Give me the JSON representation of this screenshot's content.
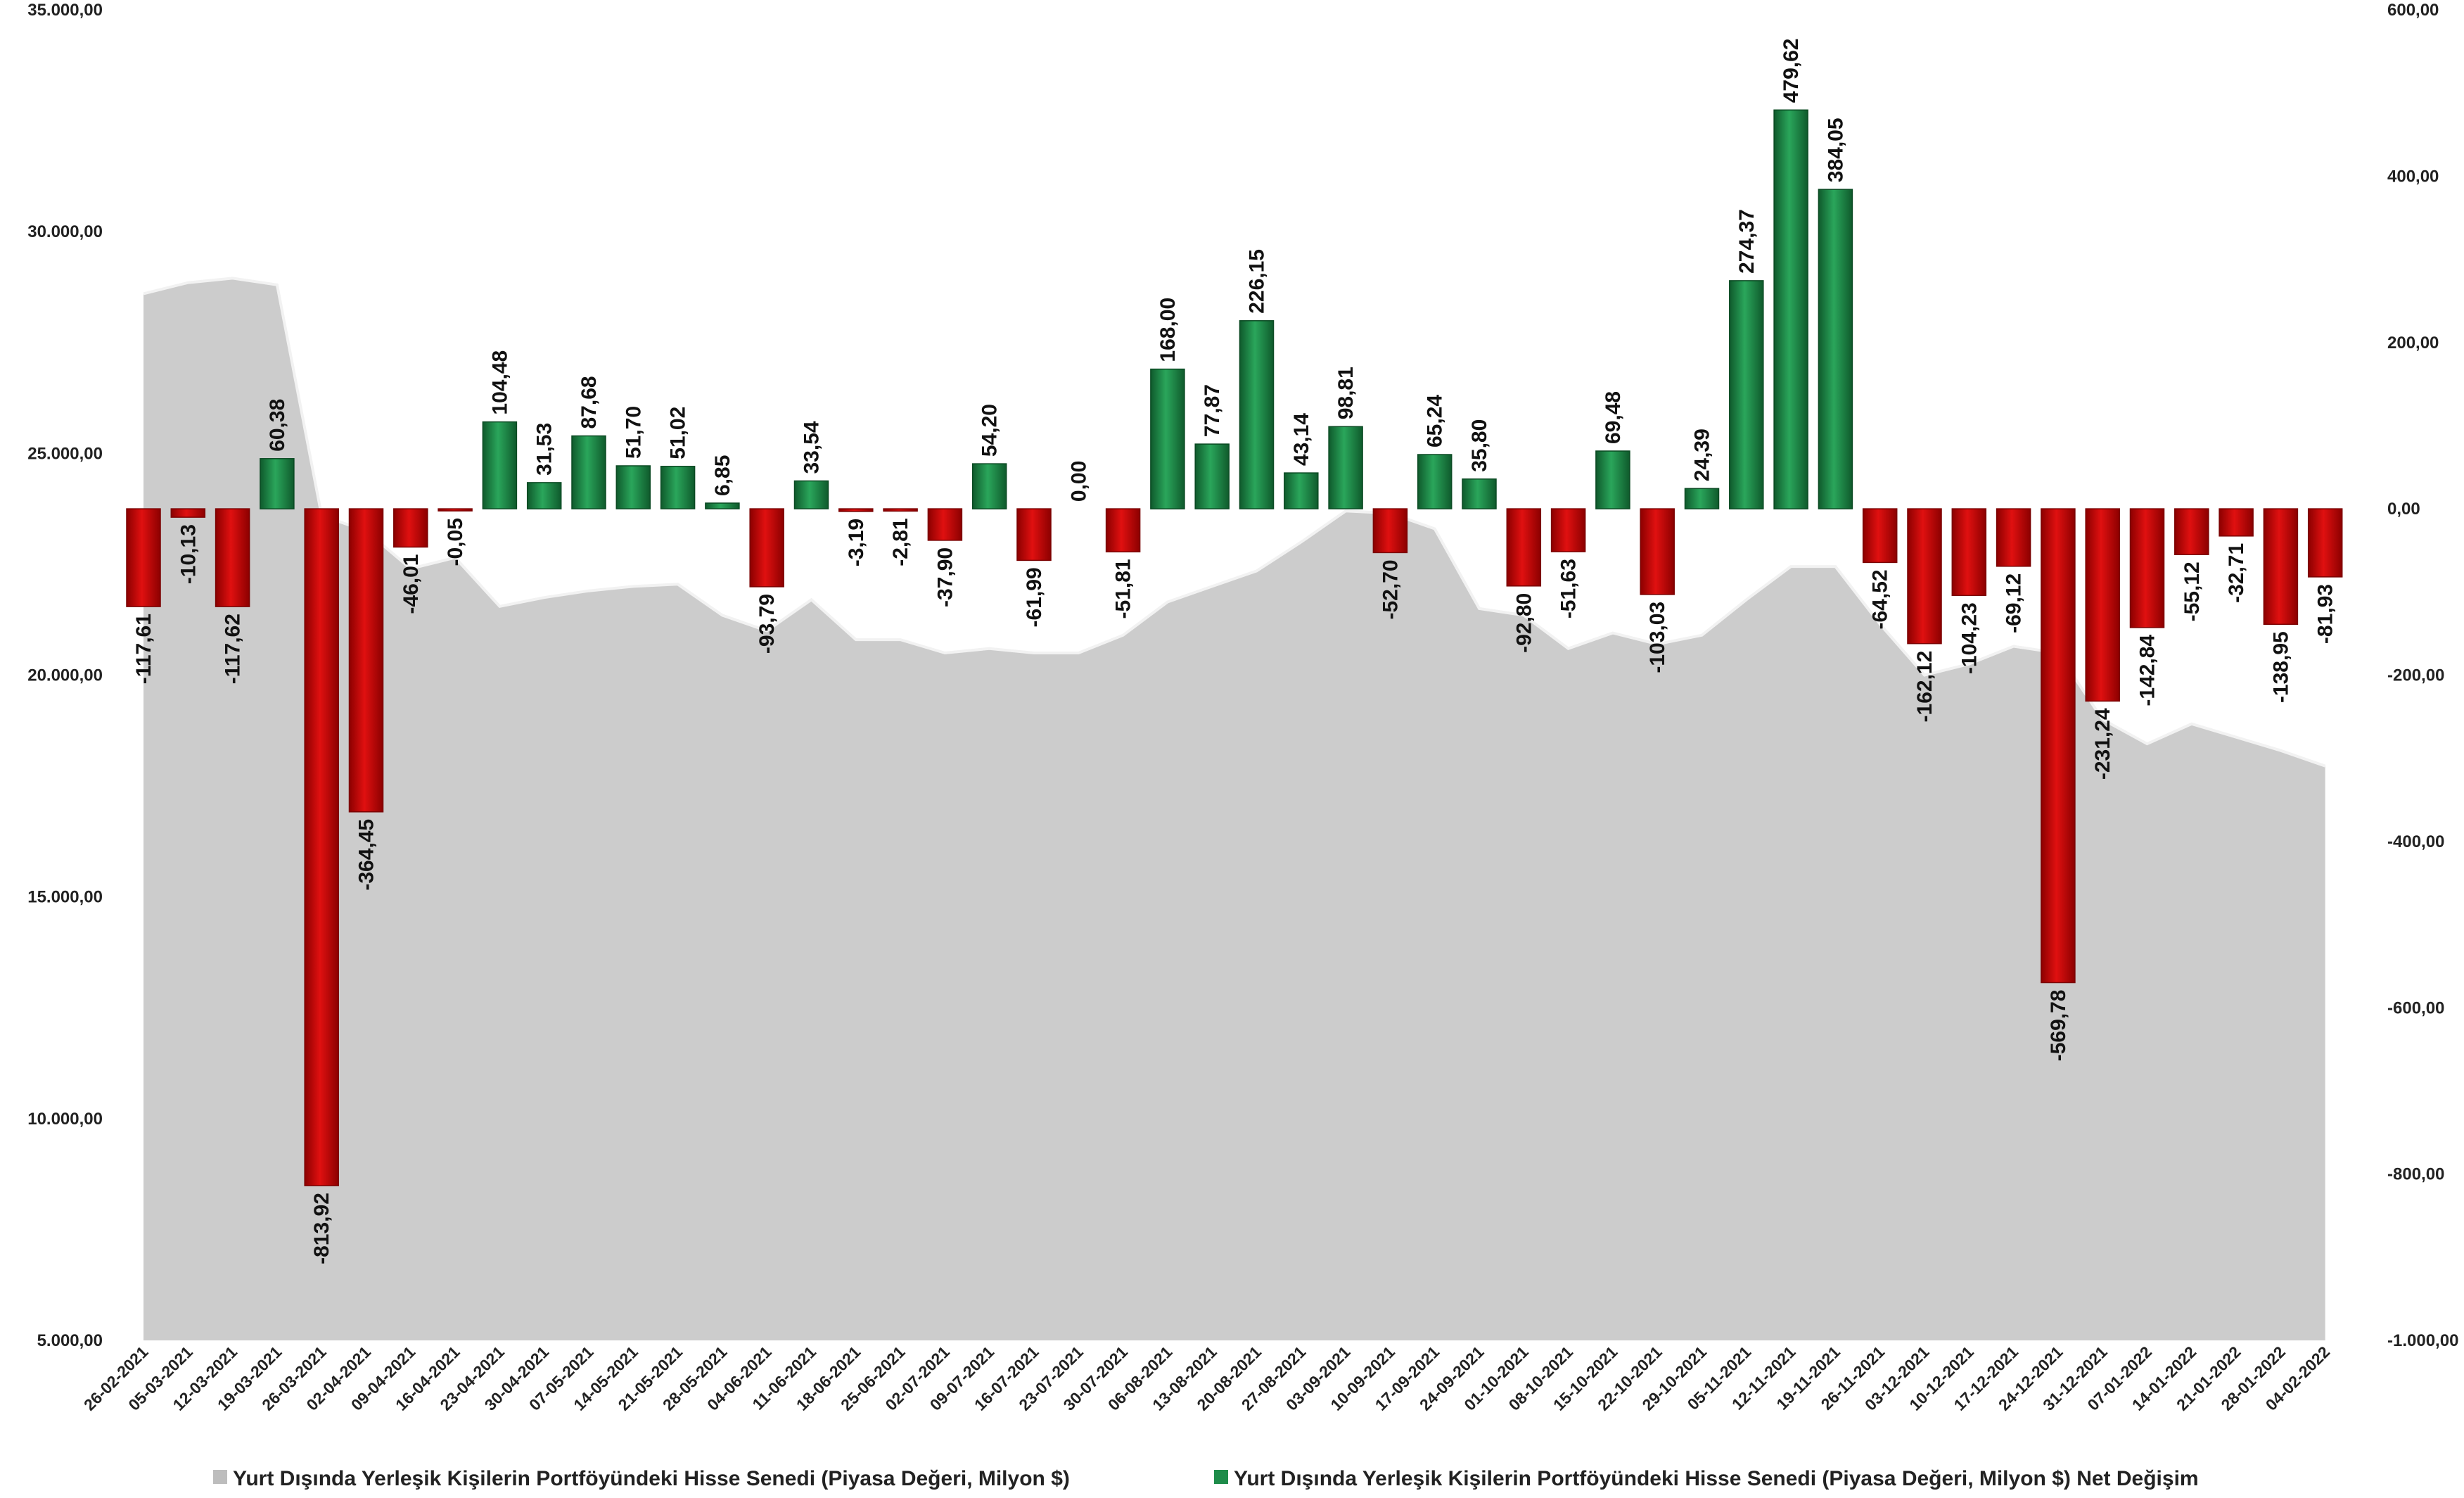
{
  "chart_data": {
    "type": "bar",
    "categories": [
      "26-02-2021",
      "05-03-2021",
      "12-03-2021",
      "19-03-2021",
      "26-03-2021",
      "02-04-2021",
      "09-04-2021",
      "16-04-2021",
      "23-04-2021",
      "30-04-2021",
      "07-05-2021",
      "14-05-2021",
      "21-05-2021",
      "28-05-2021",
      "04-06-2021",
      "11-06-2021",
      "18-06-2021",
      "25-06-2021",
      "02-07-2021",
      "09-07-2021",
      "16-07-2021",
      "23-07-2021",
      "30-07-2021",
      "06-08-2021",
      "13-08-2021",
      "20-08-2021",
      "27-08-2021",
      "03-09-2021",
      "10-09-2021",
      "17-09-2021",
      "24-09-2021",
      "01-10-2021",
      "08-10-2021",
      "15-10-2021",
      "22-10-2021",
      "29-10-2021",
      "05-11-2021",
      "12-11-2021",
      "19-11-2021",
      "26-11-2021",
      "03-12-2021",
      "10-12-2021",
      "17-12-2021",
      "24-12-2021",
      "31-12-2021",
      "07-01-2022",
      "14-01-2022",
      "21-01-2022",
      "28-01-2022",
      "04-02-2022"
    ],
    "series": [
      {
        "name": "Yurt Dışında Yerleşik Kişilerin Portföyündeki Hisse Senedi (Piyasa Değeri, Milyon $)",
        "type": "area",
        "axis": "left",
        "color": "#cccccc",
        "values": [
          28600,
          28850,
          28950,
          28800,
          23600,
          23250,
          22400,
          22650,
          21550,
          21750,
          21900,
          22000,
          22050,
          21350,
          21000,
          21700,
          20800,
          20800,
          20500,
          20600,
          20500,
          20500,
          20900,
          21650,
          22000,
          22350,
          23000,
          23700,
          23650,
          23300,
          21500,
          21350,
          20600,
          20950,
          20700,
          20900,
          21700,
          22450,
          22450,
          21150,
          20000,
          20250,
          20650,
          20500,
          19000,
          18450,
          18900,
          18600,
          18300,
          17950
        ]
      },
      {
        "name": "Yurt Dışında Yerleşik Kişilerin Portföyündeki Hisse Senedi (Piyasa Değeri, Milyon $) Net Değişim",
        "type": "bar",
        "axis": "right",
        "positive_color": "#1e8c4a",
        "negative_color": "#cc0000",
        "values": [
          -117.61,
          -10.13,
          -117.62,
          60.38,
          -813.92,
          -364.45,
          -46.01,
          -0.05,
          104.48,
          31.53,
          87.68,
          51.7,
          51.02,
          6.85,
          -93.79,
          33.54,
          -3.19,
          -2.81,
          -37.9,
          54.2,
          -61.99,
          0.0,
          -51.81,
          168.0,
          77.87,
          226.15,
          43.14,
          98.81,
          -52.7,
          65.24,
          35.8,
          -92.8,
          -51.63,
          69.48,
          -103.03,
          24.39,
          274.37,
          479.62,
          384.05,
          -64.52,
          -162.12,
          -104.23,
          -69.12,
          -569.78,
          -231.24,
          -142.84,
          -55.12,
          -32.71,
          -138.95,
          -81.93
        ],
        "labels": [
          "-117,61",
          "-10,13",
          "-117,62",
          "60,38",
          "-813,92",
          "-364,45",
          "-46,01",
          "-0,05",
          "104,48",
          "31,53",
          "87,68",
          "51,70",
          "51,02",
          "6,85",
          "-93,79",
          "33,54",
          "-3,19",
          "-2,81",
          "-37,90",
          "54,20",
          "-61,99",
          "0,00",
          "-51,81",
          "168,00",
          "77,87",
          "226,15",
          "43,14",
          "98,81",
          "-52,70",
          "65,24",
          "35,80",
          "-92,80",
          "-51,63",
          "69,48",
          "-103,03",
          "24,39",
          "274,37",
          "479,62",
          "384,05",
          "-64,52",
          "-162,12",
          "-104,23",
          "-69,12",
          "-569,78",
          "-231,24",
          "-142,84",
          "-55,12",
          "-32,71",
          "-138,95",
          "-81,93"
        ]
      }
    ],
    "left_axis": {
      "ylim": [
        5000,
        35000
      ],
      "ticks": [
        35000,
        30000,
        25000,
        20000,
        15000,
        10000,
        5000
      ],
      "tick_labels": [
        "35.000,00",
        "30.000,00",
        "25.000,00",
        "20.000,00",
        "15.000,00",
        "10.000,00",
        "5.000,00"
      ]
    },
    "right_axis": {
      "ylim": [
        -1000,
        600
      ],
      "ticks": [
        600,
        400,
        200,
        0,
        -200,
        -400,
        -600,
        -800,
        -1000
      ],
      "tick_labels": [
        "600,00",
        "400,00",
        "200,00",
        "0,00",
        "-200,00",
        "-400,00",
        "-600,00",
        "-800,00",
        "-1.000,00"
      ]
    },
    "grid": false,
    "legend_position": "bottom",
    "title": "",
    "xlabel": "",
    "ylabel": ""
  },
  "legend": {
    "items": [
      {
        "label": "Yurt Dışında Yerleşik Kişilerin Portföyündeki Hisse Senedi (Piyasa Değeri, Milyon $)",
        "color": "#bdbdbd"
      },
      {
        "label": "Yurt Dışında Yerleşik Kişilerin Portföyündeki Hisse Senedi (Piyasa Değeri, Milyon $) Net Değişim",
        "color": "#1e8c4a"
      }
    ]
  }
}
